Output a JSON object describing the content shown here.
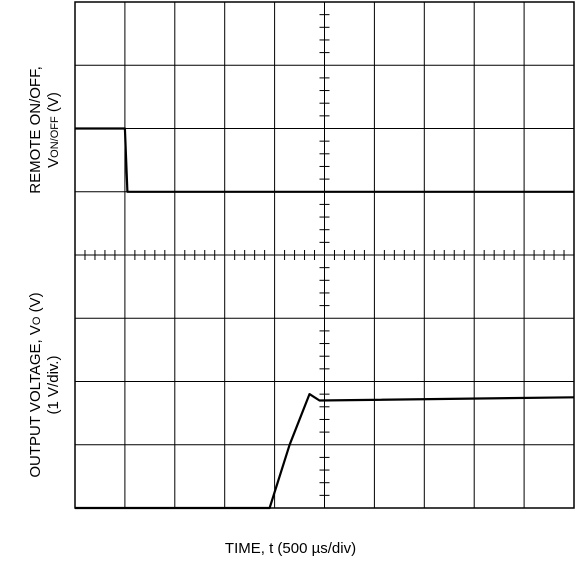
{
  "chart_data": {
    "type": "line",
    "xlabel": "TIME, t (500 µs/div)",
    "upper_ylabel": {
      "line1": "REMOTE ON/OFF,",
      "line2_prefix": "V",
      "line2_sub": "ON/OFF",
      "line2_suffix": " (V)"
    },
    "lower_ylabel": {
      "line1_prefix": "OUTPUT VOLTAGE, V",
      "line1_sub": "O",
      "line1_suffix": " (V)",
      "line2": "(1 V/div.)"
    },
    "grid": true,
    "xlim": [
      0,
      10
    ],
    "ylim": [
      0,
      8
    ],
    "series": [
      {
        "x": [
          0,
          1.0,
          1.05,
          10
        ],
        "y": [
          6.0,
          6.0,
          5.0,
          5.0
        ]
      },
      {
        "x": [
          0,
          3.9,
          4.3,
          4.7,
          4.9,
          10
        ],
        "y": [
          0.0,
          0.0,
          1.0,
          1.8,
          1.7,
          1.75
        ]
      }
    ]
  }
}
